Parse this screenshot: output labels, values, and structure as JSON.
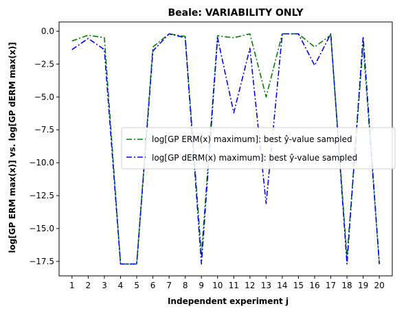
{
  "chart_data": {
    "type": "line",
    "title": "Beale: VARIABILITY ONLY",
    "xlabel": "Independent experiment j",
    "ylabel": "log[GP ERM max(x)] vs. log[GP dERM max(x)]",
    "x": [
      1,
      2,
      3,
      4,
      5,
      6,
      7,
      8,
      9,
      10,
      11,
      12,
      13,
      14,
      15,
      16,
      17,
      18,
      19,
      20
    ],
    "xlim": [
      0.2,
      20.8
    ],
    "ylim": [
      -18.6,
      0.7
    ],
    "yticks": [
      0.0,
      -2.5,
      -5.0,
      -7.5,
      -10.0,
      -12.5,
      -15.0,
      -17.5
    ],
    "ytick_labels": [
      "0.0",
      "−2.5",
      "−5.0",
      "−7.5",
      "−10.0",
      "−12.5",
      "−15.0",
      "−17.5"
    ],
    "grid": false,
    "legend_position": "center-right",
    "series": [
      {
        "name": "log[GP ERM(x) maximum]: best ŷ-value sampled",
        "color": "#008000",
        "style": "dashdot",
        "values": [
          -0.75,
          -0.3,
          -0.5,
          -17.7,
          -17.7,
          -1.2,
          -0.2,
          -0.4,
          -17.0,
          -0.35,
          -0.5,
          -0.2,
          -5.0,
          -0.2,
          -0.2,
          -1.2,
          -0.3,
          -17.2,
          -1.0,
          -17.7
        ]
      },
      {
        "name": "log[GP dERM(x) maximum]: best ŷ-value sampled",
        "color": "#0000ff",
        "style": "dashdot",
        "values": [
          -1.4,
          -0.55,
          -1.4,
          -17.7,
          -17.7,
          -1.5,
          -0.2,
          -0.5,
          -17.7,
          -0.5,
          -6.2,
          -1.3,
          -13.1,
          -0.2,
          -0.2,
          -2.6,
          -0.2,
          -17.7,
          -0.4,
          -17.7
        ]
      }
    ]
  }
}
